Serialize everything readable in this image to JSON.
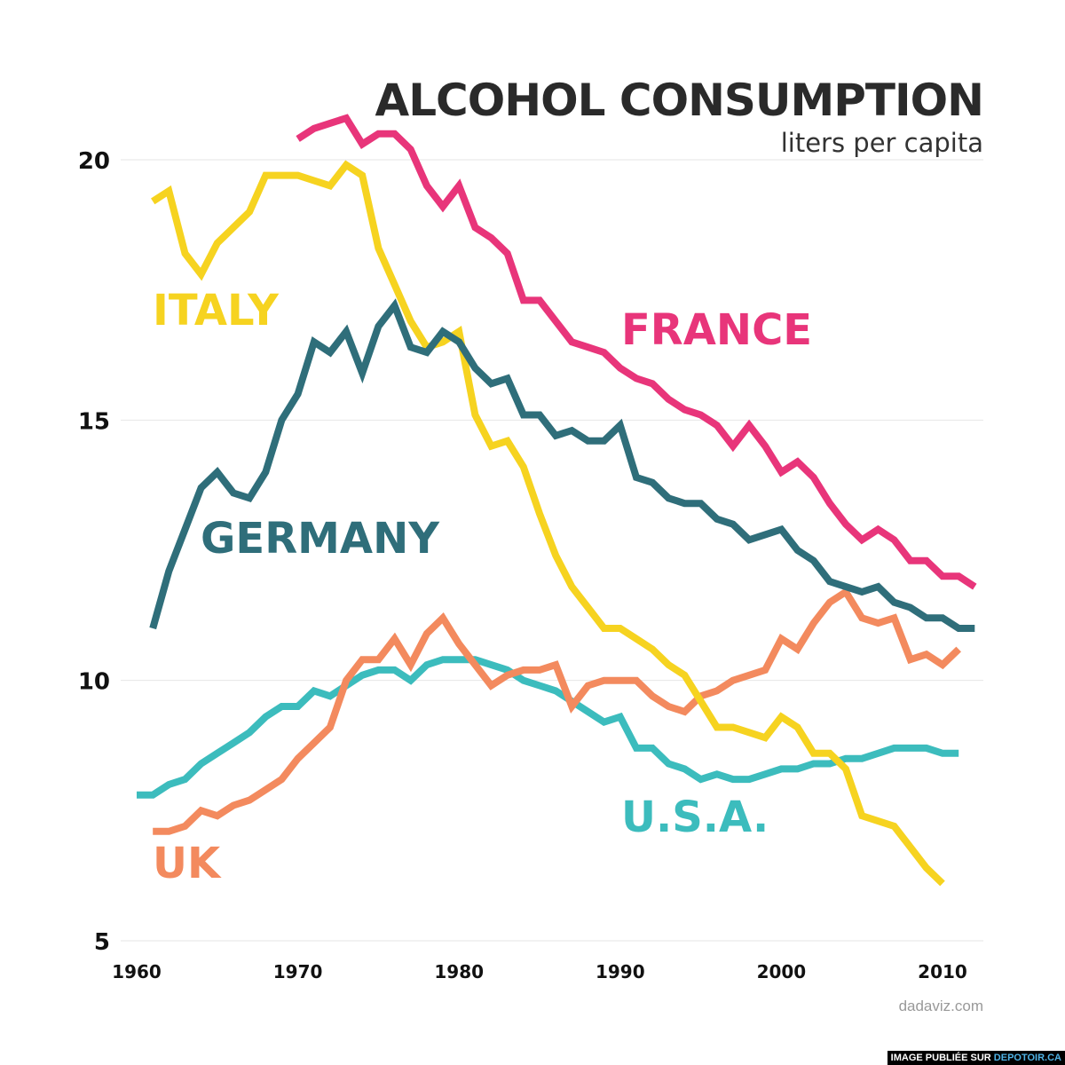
{
  "header": {
    "title": "ALCOHOL CONSUMPTION",
    "subtitle": "liters per capita"
  },
  "footer": {
    "credit": "dadaviz.com",
    "watermark_prefix": "IMAGE PUBLIÉE SUR ",
    "watermark_site": "DEPOTOIR.CA"
  },
  "chart_data": {
    "type": "line",
    "title": "ALCOHOL CONSUMPTION",
    "subtitle": "liters per capita",
    "xlim": [
      1960,
      2012
    ],
    "ylim": [
      5,
      20.5
    ],
    "x_ticks": [
      1960,
      1970,
      1980,
      1990,
      2000,
      2010
    ],
    "y_ticks": [
      5,
      10,
      15,
      20
    ],
    "grid": "horizontal",
    "series": [
      {
        "name": "FRANCE",
        "color": "#e8357a",
        "x": [
          1970,
          1971,
          1972,
          1973,
          1974,
          1975,
          1976,
          1977,
          1978,
          1979,
          1980,
          1981,
          1982,
          1983,
          1984,
          1985,
          1986,
          1987,
          1988,
          1989,
          1990,
          1991,
          1992,
          1993,
          1994,
          1995,
          1996,
          1997,
          1998,
          1999,
          2000,
          2001,
          2002,
          2003,
          2004,
          2005,
          2006,
          2007,
          2008,
          2009,
          2010,
          2011,
          2012
        ],
        "y": [
          20.4,
          20.6,
          20.7,
          20.8,
          20.3,
          20.5,
          20.5,
          20.2,
          19.5,
          19.1,
          19.5,
          18.7,
          18.5,
          18.2,
          17.3,
          17.3,
          16.9,
          16.5,
          16.4,
          16.3,
          16.0,
          15.8,
          15.7,
          15.4,
          15.2,
          15.1,
          14.9,
          14.5,
          14.9,
          14.5,
          14.0,
          14.2,
          13.9,
          13.4,
          13.0,
          12.7,
          12.9,
          12.7,
          12.3,
          12.3,
          12.0,
          12.0,
          11.8
        ]
      },
      {
        "name": "ITALY",
        "color": "#f6d320",
        "x": [
          1961,
          1962,
          1963,
          1964,
          1965,
          1966,
          1967,
          1968,
          1969,
          1970,
          1971,
          1972,
          1973,
          1974,
          1975,
          1976,
          1977,
          1978,
          1979,
          1980,
          1981,
          1982,
          1983,
          1984,
          1985,
          1986,
          1987,
          1988,
          1989,
          1990,
          1991,
          1992,
          1993,
          1994,
          1995,
          1996,
          1997,
          1998,
          1999,
          2000,
          2001,
          2002,
          2003,
          2004,
          2005,
          2006,
          2007,
          2008,
          2009,
          2010
        ],
        "y": [
          19.2,
          19.4,
          18.2,
          17.8,
          18.4,
          18.7,
          19.0,
          19.7,
          19.7,
          19.7,
          19.6,
          19.5,
          19.9,
          19.7,
          18.3,
          17.6,
          16.9,
          16.4,
          16.5,
          16.7,
          15.1,
          14.5,
          14.6,
          14.1,
          13.2,
          12.4,
          11.8,
          11.4,
          11.0,
          11.0,
          10.8,
          10.6,
          10.3,
          10.1,
          9.6,
          9.1,
          9.1,
          9.0,
          8.9,
          9.3,
          9.1,
          8.6,
          8.6,
          8.3,
          7.4,
          7.3,
          7.2,
          6.8,
          6.4,
          6.1
        ]
      },
      {
        "name": "GERMANY",
        "color": "#2f6e7a",
        "x": [
          1961,
          1962,
          1963,
          1964,
          1965,
          1966,
          1967,
          1968,
          1969,
          1970,
          1971,
          1972,
          1973,
          1974,
          1975,
          1976,
          1977,
          1978,
          1979,
          1980,
          1981,
          1982,
          1983,
          1984,
          1985,
          1986,
          1987,
          1988,
          1989,
          1990,
          1991,
          1992,
          1993,
          1994,
          1995,
          1996,
          1997,
          1998,
          1999,
          2000,
          2001,
          2002,
          2003,
          2004,
          2005,
          2006,
          2007,
          2008,
          2009,
          2010,
          2011,
          2012
        ],
        "y": [
          11.0,
          12.1,
          12.9,
          13.7,
          14.0,
          13.6,
          13.5,
          14.0,
          15.0,
          15.5,
          16.5,
          16.3,
          16.7,
          15.9,
          16.8,
          17.2,
          16.4,
          16.3,
          16.7,
          16.5,
          16.0,
          15.7,
          15.8,
          15.1,
          15.1,
          14.7,
          14.8,
          14.6,
          14.6,
          14.9,
          13.9,
          13.8,
          13.5,
          13.4,
          13.4,
          13.1,
          13.0,
          12.7,
          12.8,
          12.9,
          12.5,
          12.3,
          11.9,
          11.8,
          11.7,
          11.8,
          11.5,
          11.4,
          11.2,
          11.2,
          11.0,
          11.0
        ]
      },
      {
        "name": "UK",
        "color": "#f38a5e",
        "x": [
          1961,
          1962,
          1963,
          1964,
          1965,
          1966,
          1967,
          1968,
          1969,
          1970,
          1971,
          1972,
          1973,
          1974,
          1975,
          1976,
          1977,
          1978,
          1979,
          1980,
          1981,
          1982,
          1983,
          1984,
          1985,
          1986,
          1987,
          1988,
          1989,
          1990,
          1991,
          1992,
          1993,
          1994,
          1995,
          1996,
          1997,
          1998,
          1999,
          2000,
          2001,
          2002,
          2003,
          2004,
          2005,
          2006,
          2007,
          2008,
          2009,
          2010,
          2011
        ],
        "y": [
          7.1,
          7.1,
          7.2,
          7.5,
          7.4,
          7.6,
          7.7,
          7.9,
          8.1,
          8.5,
          8.8,
          9.1,
          10.0,
          10.4,
          10.4,
          10.8,
          10.3,
          10.9,
          11.2,
          10.7,
          10.3,
          9.9,
          10.1,
          10.2,
          10.2,
          10.3,
          9.5,
          9.9,
          10.0,
          10.0,
          10.0,
          9.7,
          9.5,
          9.4,
          9.7,
          9.8,
          10.0,
          10.1,
          10.2,
          10.8,
          10.6,
          11.1,
          11.5,
          11.7,
          11.2,
          11.1,
          11.2,
          10.4,
          10.5,
          10.3,
          10.6
        ]
      },
      {
        "name": "U.S.A.",
        "color": "#3cbcbd",
        "x": [
          1960,
          1961,
          1962,
          1963,
          1964,
          1965,
          1966,
          1967,
          1968,
          1969,
          1970,
          1971,
          1972,
          1973,
          1974,
          1975,
          1976,
          1977,
          1978,
          1979,
          1980,
          1981,
          1982,
          1983,
          1984,
          1985,
          1986,
          1987,
          1988,
          1989,
          1990,
          1991,
          1992,
          1993,
          1994,
          1995,
          1996,
          1997,
          1998,
          1999,
          2000,
          2001,
          2002,
          2003,
          2004,
          2005,
          2006,
          2007,
          2008,
          2009,
          2010,
          2011
        ],
        "y": [
          7.8,
          7.8,
          8.0,
          8.1,
          8.4,
          8.6,
          8.8,
          9.0,
          9.3,
          9.5,
          9.5,
          9.8,
          9.7,
          9.9,
          10.1,
          10.2,
          10.2,
          10.0,
          10.3,
          10.4,
          10.4,
          10.4,
          10.3,
          10.2,
          10.0,
          9.9,
          9.8,
          9.6,
          9.4,
          9.2,
          9.3,
          8.7,
          8.7,
          8.4,
          8.3,
          8.1,
          8.2,
          8.1,
          8.1,
          8.2,
          8.3,
          8.3,
          8.4,
          8.4,
          8.5,
          8.5,
          8.6,
          8.7,
          8.7,
          8.7,
          8.6,
          8.6
        ]
      }
    ]
  }
}
